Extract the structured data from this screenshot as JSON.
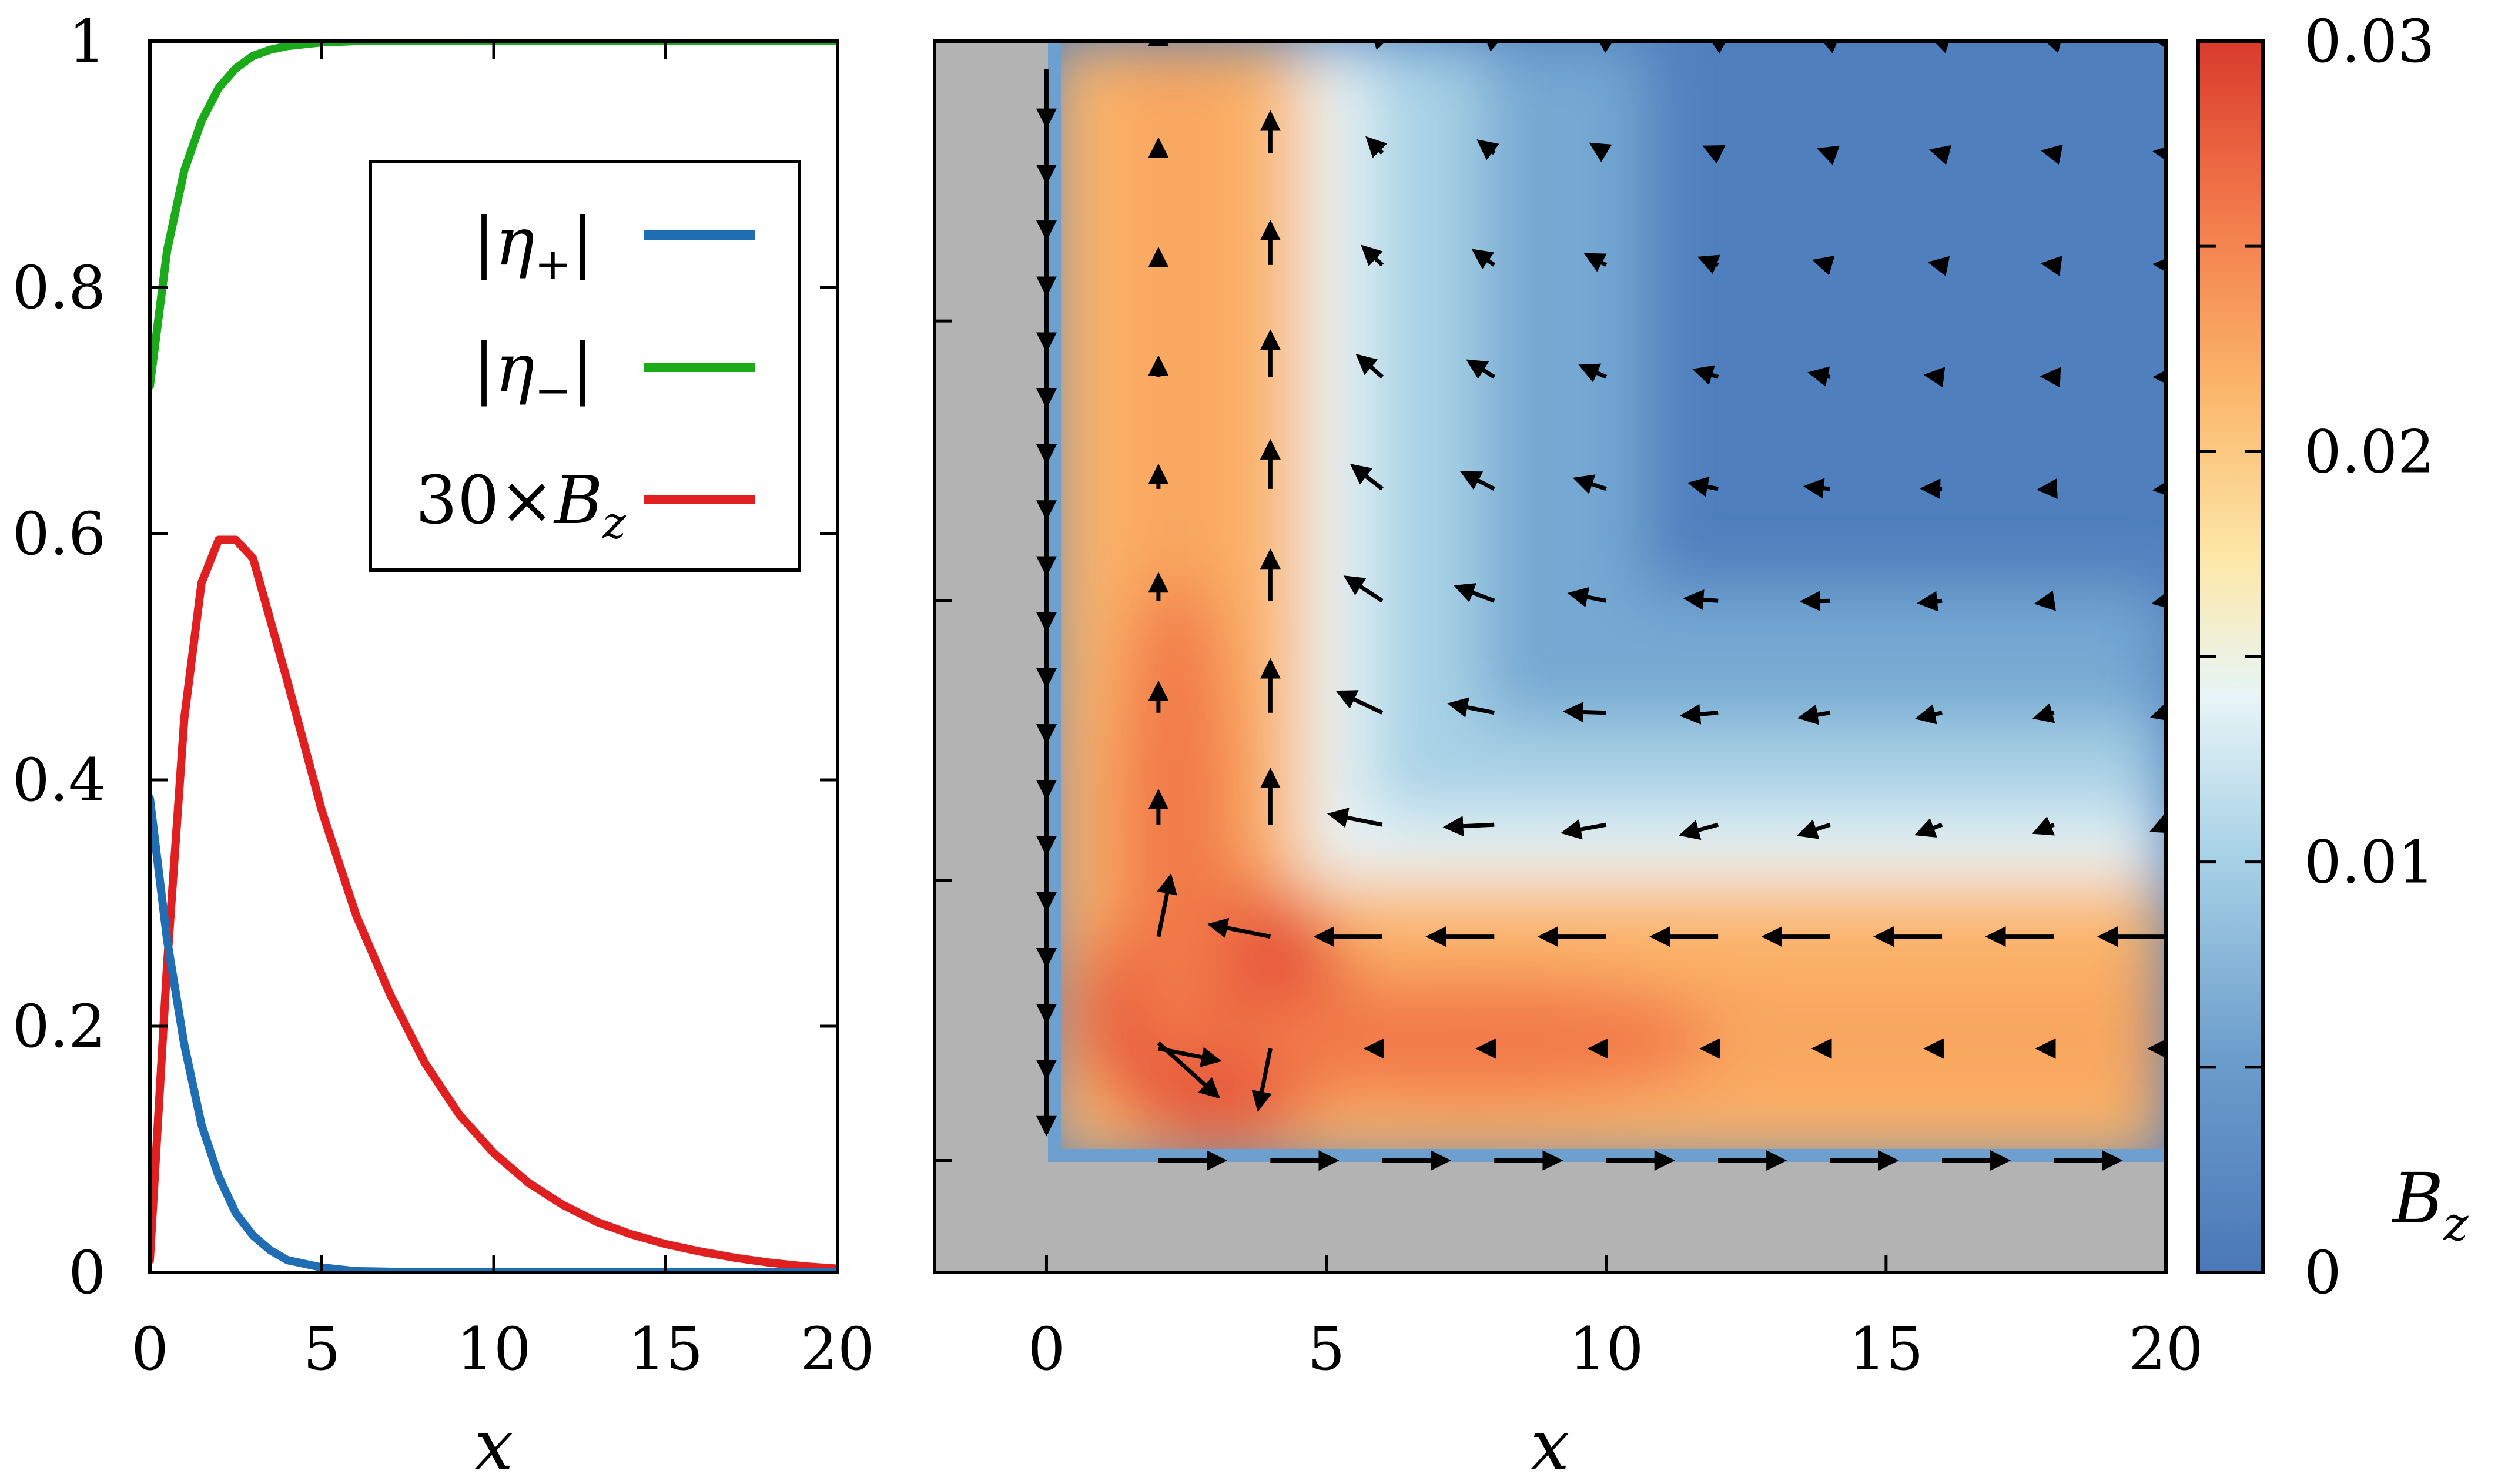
{
  "chart_data": [
    {
      "type": "line",
      "xlabel": "x",
      "xlim": [
        0,
        20
      ],
      "ylim": [
        0,
        1
      ],
      "xticks": [
        "0",
        "5",
        "10",
        "15",
        "20"
      ],
      "yticks": [
        "0",
        "0.2",
        "0.4",
        "0.6",
        "0.8",
        "1"
      ],
      "legend": {
        "placement": "top-right",
        "entries": [
          "|η+|",
          "|η−|",
          "30×Bz"
        ]
      },
      "series": [
        {
          "name": "|η+|",
          "color": "#1f6eb4",
          "x": [
            0,
            0.5,
            1,
            1.5,
            2,
            2.5,
            3,
            3.5,
            4,
            5,
            6,
            8,
            10,
            15,
            20
          ],
          "values": [
            0.385,
            0.27,
            0.185,
            0.12,
            0.078,
            0.048,
            0.03,
            0.018,
            0.01,
            0.004,
            0.001,
            0,
            0,
            0,
            0
          ]
        },
        {
          "name": "|η−|",
          "color": "#1aaa1a",
          "x": [
            0,
            0.5,
            1,
            1.5,
            2,
            2.5,
            3,
            3.5,
            4,
            5,
            6,
            8,
            10,
            15,
            20
          ],
          "values": [
            0.72,
            0.83,
            0.895,
            0.935,
            0.962,
            0.978,
            0.988,
            0.993,
            0.996,
            0.999,
            1,
            1,
            1,
            1,
            1
          ]
        },
        {
          "name": "30×Bz",
          "color": "#e02020",
          "x": [
            0,
            0.5,
            1,
            1.5,
            2,
            2.5,
            3,
            4,
            5,
            6,
            7,
            8,
            9,
            10,
            11,
            12,
            13,
            14,
            15,
            16,
            17,
            18,
            19,
            20
          ],
          "values": [
            0.01,
            0.25,
            0.45,
            0.56,
            0.595,
            0.595,
            0.58,
            0.48,
            0.375,
            0.29,
            0.225,
            0.17,
            0.128,
            0.097,
            0.073,
            0.055,
            0.041,
            0.031,
            0.023,
            0.017,
            0.012,
            0.008,
            0.005,
            0.003
          ]
        }
      ]
    },
    {
      "type": "heatmap",
      "xlabel": "x",
      "xlim": [
        -2,
        20
      ],
      "ylim": [
        -2,
        20
      ],
      "xticks": [
        "0",
        "5",
        "10",
        "15",
        "20"
      ],
      "colorbar": {
        "label": "Bz",
        "min": 0,
        "max": 0.03,
        "ticks": [
          "0",
          "0.01",
          "0.02",
          "0.03"
        ],
        "colors": [
          "#4575b4",
          "#74add1",
          "#abd9e9",
          "#e0f3f8",
          "#fee090",
          "#fdae61",
          "#f46d43",
          "#d73027"
        ]
      },
      "field_description": "Bz peaks near corner at (3,3) with value 0.028; vector arrows show circulating current along walls"
    }
  ]
}
